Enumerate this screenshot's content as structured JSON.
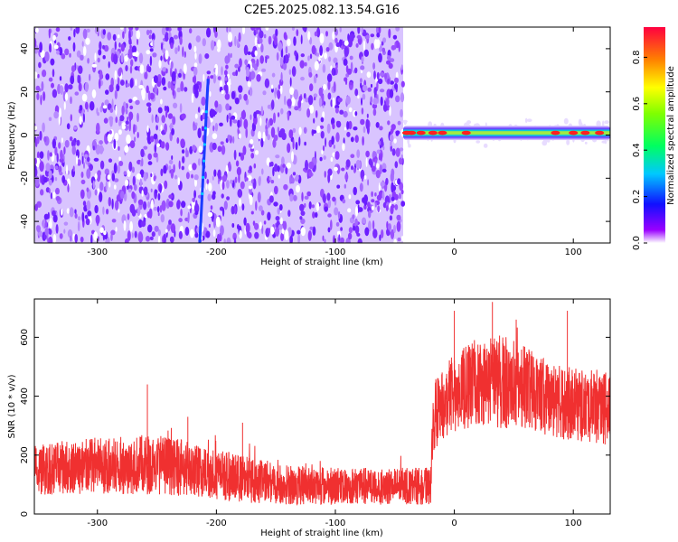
{
  "title": "C2E5.2025.082.13.54.G16",
  "chart_data": [
    {
      "type": "heatmap",
      "xlabel": "Height of straight line (km)",
      "ylabel": "Frequency (Hz)",
      "xlim": [
        -353,
        131
      ],
      "ylim": [
        -50,
        50
      ],
      "xticks": [
        -300,
        -200,
        -100,
        0,
        100
      ],
      "xtick_labels": [
        "-300",
        "-200",
        "-100",
        "0",
        "100"
      ],
      "yticks": [
        -40,
        -20,
        0,
        20,
        40
      ],
      "ytick_labels": [
        "-40",
        "-20",
        "0",
        "20",
        "40"
      ],
      "colorbar": {
        "label": "Normalized spectral amplitude",
        "range": [
          0,
          0.93
        ],
        "ticks": [
          0.0,
          0.2,
          0.4,
          0.6,
          0.8
        ],
        "tick_labels": [
          "0.0",
          "0.2",
          "0.4",
          "0.6",
          "0.8"
        ]
      },
      "regions": [
        {
          "x_range": [
            -353,
            -43
          ],
          "freq_range": [
            -50,
            50
          ],
          "amplitude": "low-noise (~0.1-0.2)"
        },
        {
          "x_range": [
            -43,
            131
          ],
          "freq_center": 1,
          "amplitude_peak": 0.9
        }
      ],
      "trace_line": {
        "x": [
          -214,
          -207
        ],
        "freq": [
          -50,
          26
        ]
      },
      "grid": false
    },
    {
      "type": "line",
      "xlabel": "Height of straight line (km)",
      "ylabel": "SNR (10 * v/v)",
      "xlim": [
        -353,
        131
      ],
      "ylim": [
        0,
        730
      ],
      "xticks": [
        -300,
        -200,
        -100,
        0,
        100
      ],
      "xtick_labels": [
        "-300",
        "-200",
        "-100",
        "0",
        "100"
      ],
      "yticks": [
        0,
        200,
        400,
        600
      ],
      "ytick_labels": [
        "0",
        "200",
        "400",
        "600"
      ],
      "series": [
        {
          "color": "#f03030",
          "envelope": {
            "x": [
              -353,
              -320,
              -280,
              -250,
              -220,
              -180,
              -140,
              -100,
              -60,
              -20,
              -18,
              0,
              20,
              40,
              60,
              80,
              100,
              131
            ],
            "center": [
              150,
              160,
              165,
              170,
              150,
              120,
              100,
              95,
              95,
              95,
              330,
              410,
              450,
              450,
              430,
              390,
              370,
              360
            ],
            "spread": [
              75,
              80,
              85,
              90,
              80,
              70,
              60,
              55,
              55,
              55,
              100,
              120,
              130,
              140,
              120,
              110,
              110,
              110
            ],
            "peaks": [
              {
                "x": 32,
                "y": 720
              },
              {
                "x": -258,
                "y": 440
              },
              {
                "x": 95,
                "y": 690
              },
              {
                "x": 52,
                "y": 660
              },
              {
                "x": 0,
                "y": 690
              },
              {
                "x": -224,
                "y": 330
              },
              {
                "x": -178,
                "y": 310
              }
            ]
          }
        }
      ],
      "grid": false
    }
  ]
}
